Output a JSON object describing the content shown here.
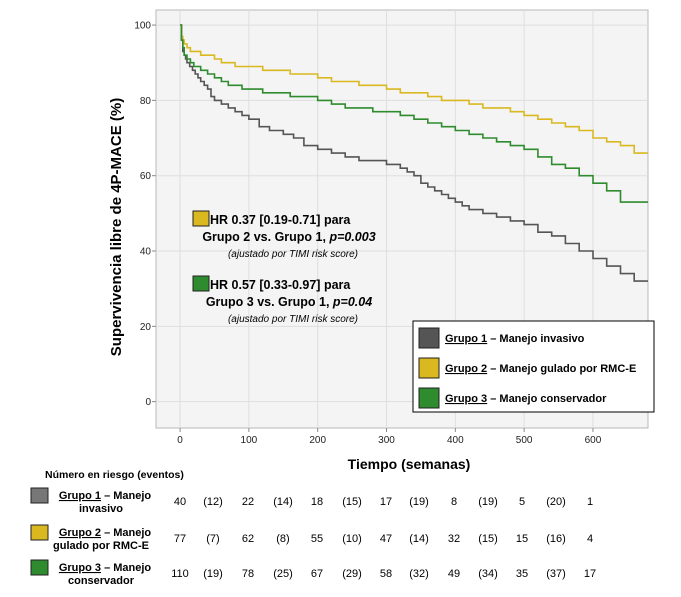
{
  "chart_data": {
    "type": "line",
    "subtype": "kaplan-meier",
    "xlabel": "Tiempo (semanas)",
    "ylabel": "Supervivencia libre de 4P-MACE (%)",
    "xlim": [
      -35,
      680
    ],
    "ylim": [
      -7,
      104
    ],
    "xticks": [
      0,
      100,
      200,
      300,
      400,
      500,
      600
    ],
    "yticks": [
      0,
      20,
      40,
      60,
      80,
      100
    ],
    "series": [
      {
        "name": "Grupo 1",
        "description": "Manejo invasivo",
        "color": "#555555",
        "x": [
          0,
          2,
          4,
          6,
          8,
          10,
          14,
          18,
          22,
          26,
          30,
          35,
          40,
          45,
          50,
          60,
          70,
          80,
          90,
          100,
          115,
          130,
          150,
          165,
          180,
          200,
          220,
          240,
          260,
          280,
          300,
          320,
          330,
          340,
          350,
          360,
          370,
          380,
          390,
          400,
          410,
          420,
          440,
          460,
          480,
          500,
          520,
          540,
          560,
          580,
          600,
          620,
          640,
          660,
          680
        ],
        "y": [
          100,
          96,
          93,
          92,
          91,
          90,
          89,
          88,
          87,
          86,
          85,
          84,
          83,
          81,
          80,
          79,
          78,
          77,
          76,
          75,
          73,
          72,
          71,
          70,
          68,
          67,
          66,
          65,
          64,
          64,
          63,
          62,
          61,
          60,
          58,
          57,
          56,
          55,
          54,
          53,
          52,
          51,
          50,
          49,
          48,
          47,
          45,
          44,
          42,
          40,
          38,
          36,
          34,
          32,
          32
        ]
      },
      {
        "name": "Grupo 2",
        "description": "Manejo gulado por RMC-E",
        "color": "#d9b820",
        "x": [
          0,
          2,
          4,
          6,
          10,
          15,
          20,
          30,
          40,
          50,
          60,
          70,
          80,
          100,
          120,
          140,
          160,
          180,
          200,
          220,
          240,
          260,
          280,
          300,
          320,
          340,
          360,
          380,
          400,
          420,
          440,
          460,
          480,
          500,
          520,
          540,
          560,
          580,
          600,
          620,
          640,
          660,
          680
        ],
        "y": [
          100,
          97,
          96,
          95,
          94,
          93,
          93,
          92,
          92,
          91,
          90,
          90,
          89,
          89,
          88,
          88,
          87,
          87,
          86,
          85,
          85,
          84,
          84,
          83,
          82,
          82,
          81,
          80,
          80,
          79,
          78,
          78,
          77,
          76,
          75,
          74,
          73,
          72,
          70,
          69,
          68,
          66,
          66
        ]
      },
      {
        "name": "Grupo 3",
        "description": "Manejo conservador",
        "color": "#2e8b2e",
        "x": [
          0,
          2,
          4,
          6,
          10,
          15,
          20,
          30,
          40,
          50,
          60,
          70,
          80,
          90,
          100,
          120,
          140,
          160,
          180,
          200,
          220,
          240,
          260,
          280,
          300,
          320,
          340,
          360,
          380,
          400,
          420,
          440,
          460,
          480,
          500,
          520,
          540,
          560,
          580,
          600,
          620,
          640,
          660,
          680
        ],
        "y": [
          100,
          96,
          94,
          92,
          91,
          90,
          89,
          88,
          87,
          86,
          85,
          84,
          84,
          83,
          83,
          82,
          82,
          81,
          81,
          80,
          79,
          78,
          78,
          77,
          77,
          76,
          75,
          74,
          73,
          72,
          71,
          70,
          69,
          68,
          67,
          65,
          63,
          62,
          60,
          58,
          56,
          53,
          53,
          53
        ]
      }
    ],
    "annotations": [
      {
        "color": "#d9b820",
        "line1": "HR 0.37 [0.19-0.71] para",
        "line2_a": "Grupo 2 vs. Grupo 1, ",
        "line2_b": "p=0.003",
        "line3": "(ajustado por TIMI risk score)"
      },
      {
        "color": "#2e8b2e",
        "line1": "HR 0.57 [0.33-0.97] para",
        "line2_a": "Grupo 3 vs. Grupo 1, ",
        "line2_b": "p=0.04",
        "line3": "(ajustado por TIMI risk score)"
      }
    ],
    "legend": {
      "position": "bottom-right",
      "items": [
        {
          "group": "Grupo 1",
          "desc": " – Manejo invasivo",
          "color": "#555555"
        },
        {
          "group": "Grupo 2",
          "desc": " – Manejo gulado por RMC-E",
          "color": "#d9b820"
        },
        {
          "group": "Grupo 3",
          "desc": " – Manejo conservador",
          "color": "#2e8b2e"
        }
      ]
    },
    "risk_table": {
      "title": "Número en riesgo (eventos)",
      "rows": [
        {
          "color": "#777777",
          "group": "Grupo 1",
          "line1_rest": " – Manejo",
          "line2": "invasivo",
          "values": [
            "40",
            "(12)",
            "22",
            "(14)",
            "18",
            "(15)",
            "17",
            "(19)",
            "8",
            "(19)",
            "5",
            "(20)",
            "1"
          ]
        },
        {
          "color": "#d9b820",
          "group": "Grupo 2",
          "line1_rest": " – Manejo",
          "line2": "gulado por RMC-E",
          "values": [
            "77",
            "(7)",
            "62",
            "(8)",
            "55",
            "(10)",
            "47",
            "(14)",
            "32",
            "(15)",
            "15",
            "(16)",
            "4"
          ]
        },
        {
          "color": "#2e8b2e",
          "group": "Grupo 3",
          "line1_rest": " – Manejo",
          "line2": "conservador",
          "values": [
            "110",
            "(19)",
            "78",
            "(25)",
            "67",
            "(29)",
            "58",
            "(32)",
            "49",
            "(34)",
            "35",
            "(37)",
            "17"
          ]
        }
      ]
    }
  }
}
